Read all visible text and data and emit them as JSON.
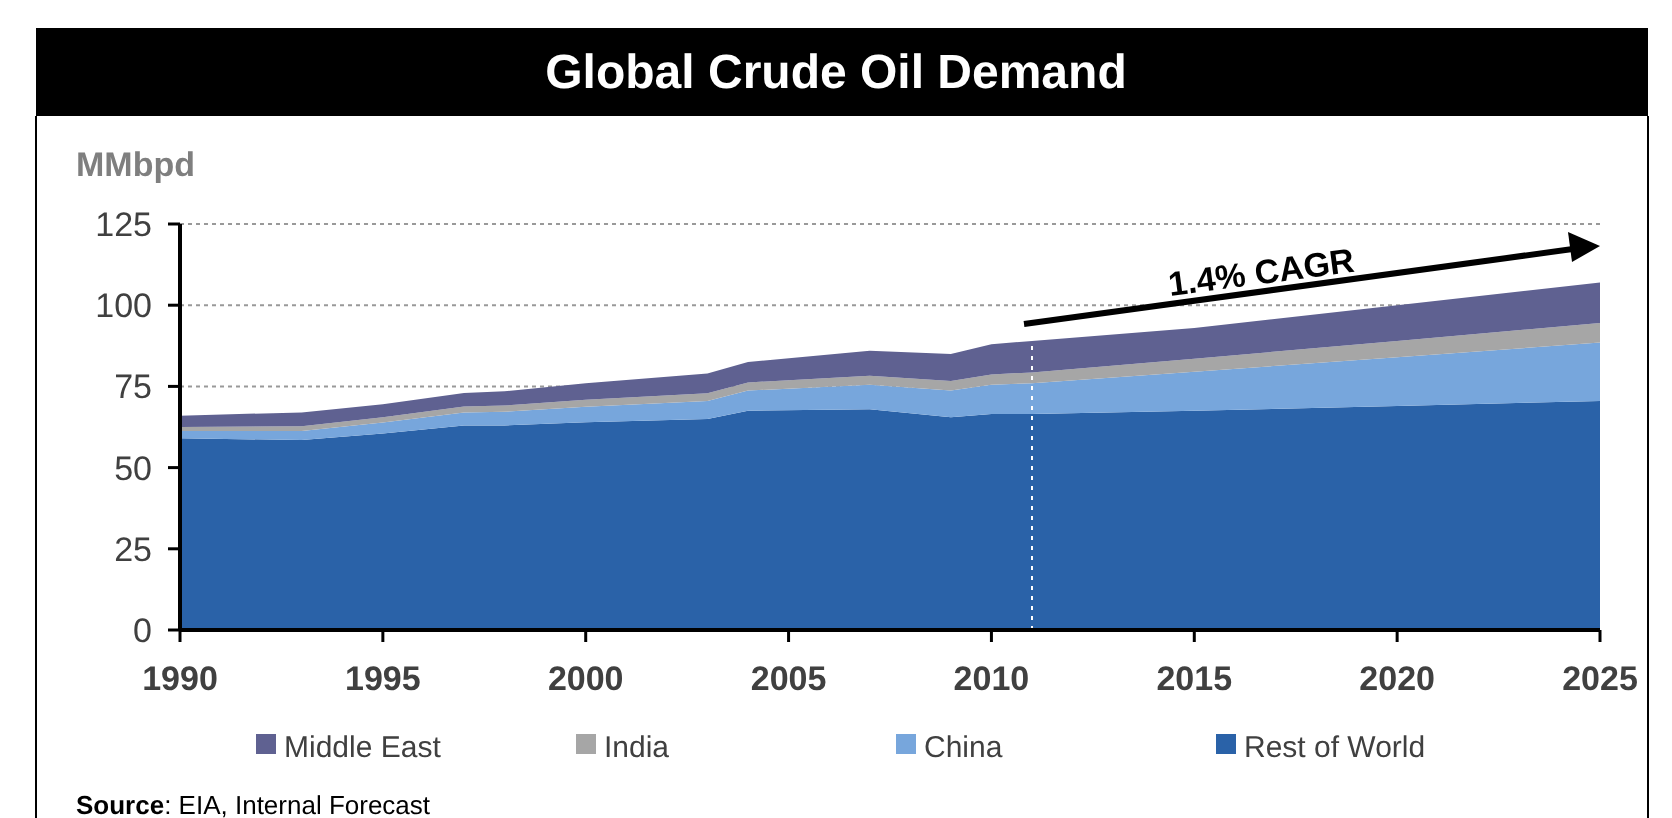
{
  "chart_data": {
    "type": "area",
    "stacked": true,
    "title": "Global Crude Oil Demand",
    "ylabel": "MMbpd",
    "x": [
      1990,
      1993,
      1995,
      1997,
      1998,
      2000,
      2003,
      2004,
      2007,
      2009,
      2010,
      2011,
      2015,
      2020,
      2025
    ],
    "series": [
      {
        "name": "Rest of World",
        "color": "#2a62a8",
        "values": [
          59,
          58.5,
          60.5,
          63,
          63,
          64,
          65,
          67.5,
          68,
          65.5,
          66.5,
          66.5,
          67.5,
          69,
          70.5
        ]
      },
      {
        "name": "China",
        "color": "#77a6dc",
        "values": [
          2.3,
          2.8,
          3.4,
          4.0,
          4.2,
          4.7,
          5.5,
          6.2,
          7.5,
          8.2,
          9,
          9.5,
          12,
          15,
          18
        ]
      },
      {
        "name": "India",
        "color": "#a6a6a6",
        "values": [
          1.2,
          1.4,
          1.6,
          1.8,
          1.9,
          2.2,
          2.4,
          2.5,
          2.8,
          3.0,
          3.2,
          3.3,
          4,
          5,
          6
        ]
      },
      {
        "name": "Middle East",
        "color": "#5f6191",
        "values": [
          3.5,
          4.3,
          4.0,
          4.2,
          4.4,
          5.1,
          6.1,
          6.3,
          7.7,
          8.3,
          9.3,
          9.7,
          9.5,
          11,
          12.5
        ]
      }
    ],
    "xlim": [
      1990,
      2025
    ],
    "xticks": [
      1990,
      1995,
      2000,
      2005,
      2010,
      2015,
      2020,
      2025
    ],
    "ylim": [
      0,
      125
    ],
    "yticks": [
      0,
      25,
      50,
      75,
      100,
      125
    ],
    "grid": "y",
    "legend": "bottom",
    "ref_lines": [
      {
        "axis": "x",
        "value": 2011,
        "color": "#ffffff",
        "line_style": "dotted"
      }
    ],
    "annotations": [
      "1.4% CAGR",
      "Source: EIA, Internal Forecast"
    ]
  }
}
